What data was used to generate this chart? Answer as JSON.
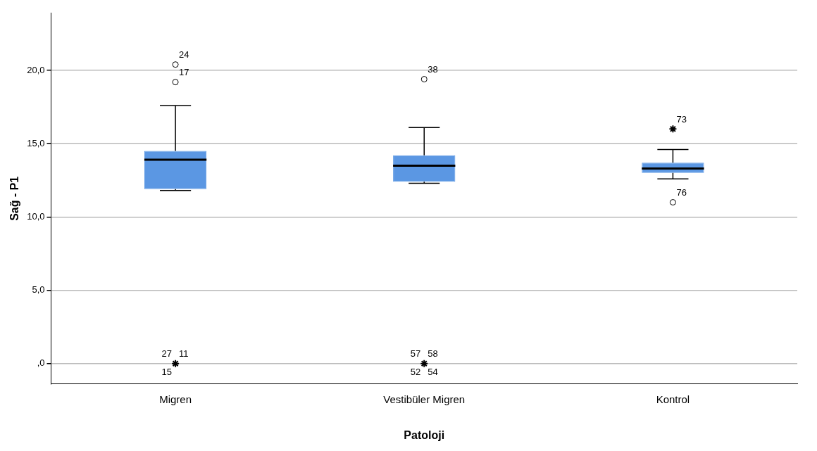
{
  "chart_data": {
    "type": "box",
    "xlabel": "Patoloji",
    "ylabel": "Sağ - P1",
    "categories": [
      "Migren",
      "Vestibüler Migren",
      "Kontrol"
    ],
    "color": "#5b97e3",
    "boxes": [
      {
        "low": 11.8,
        "q1": 11.9,
        "median": 13.9,
        "q3": 14.5,
        "high": 17.6
      },
      {
        "low": 12.3,
        "q1": 12.4,
        "median": 13.5,
        "q3": 14.2,
        "high": 16.1
      },
      {
        "low": 12.6,
        "q1": 13.0,
        "median": 13.3,
        "q3": 13.7,
        "high": 14.6
      }
    ],
    "series": [
      {
        "type": "scatter",
        "marker": "circle",
        "color": "#000000",
        "x": [
          "Migren",
          "Migren",
          "Vestibüler Migren",
          "Kontrol"
        ],
        "values": [
          20.4,
          19.2,
          19.4,
          11.0
        ]
      },
      {
        "type": "scatter",
        "marker": "cross",
        "color": "#000000",
        "x": [
          "Migren",
          "Vestibüler Migren",
          "Kontrol"
        ],
        "values": [
          0,
          0,
          16.0
        ]
      }
    ],
    "ylim": [
      -1.4,
      23.9
    ],
    "yticks": [
      {
        "value": 0,
        "label": ",0"
      },
      {
        "value": 5,
        "label": "5,0"
      },
      {
        "value": 10,
        "label": "10,0"
      },
      {
        "value": 15,
        "label": "15,0"
      },
      {
        "value": 20,
        "label": "20,0"
      }
    ],
    "grid": "y",
    "legend": false,
    "annotations": [
      {
        "text": "24",
        "x": "Migren",
        "y": 20.4
      },
      {
        "text": "17",
        "x": "Migren",
        "y": 19.2
      },
      {
        "text": "11",
        "x": "Migren",
        "y": 0
      },
      {
        "text": "27",
        "x": "Migren",
        "y": 0
      },
      {
        "text": "15",
        "x": "Migren",
        "y": 0
      },
      {
        "text": "38",
        "x": "Vestibüler Migren",
        "y": 19.4
      },
      {
        "text": "58",
        "x": "Vestibüler Migren",
        "y": 0
      },
      {
        "text": "57",
        "x": "Vestibüler Migren",
        "y": 0
      },
      {
        "text": "52",
        "x": "Vestibüler Migren",
        "y": 0
      },
      {
        "text": "54",
        "x": "Vestibüler Migren",
        "y": 0
      },
      {
        "text": "73",
        "x": "Kontrol",
        "y": 16.0
      },
      {
        "text": "76",
        "x": "Kontrol",
        "y": 11.0
      }
    ]
  }
}
